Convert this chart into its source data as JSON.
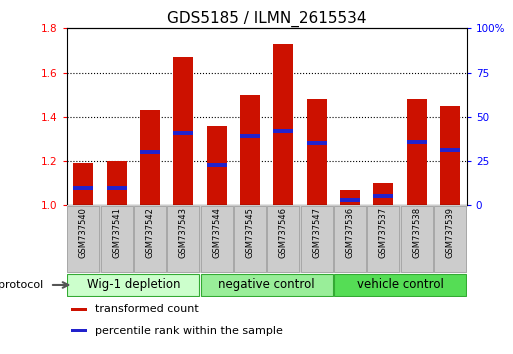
{
  "title": "GDS5185 / ILMN_2615534",
  "samples": [
    "GSM737540",
    "GSM737541",
    "GSM737542",
    "GSM737543",
    "GSM737544",
    "GSM737545",
    "GSM737546",
    "GSM737547",
    "GSM737536",
    "GSM737537",
    "GSM737538",
    "GSM737539"
  ],
  "transformed_count": [
    1.19,
    1.2,
    1.43,
    1.67,
    1.36,
    1.5,
    1.73,
    1.48,
    1.07,
    1.1,
    1.48,
    1.45
  ],
  "percentile_rank_pct": [
    10,
    10,
    30,
    41,
    23,
    39,
    42,
    35,
    3,
    5,
    36,
    31
  ],
  "groups": [
    {
      "label": "Wig-1 depletion",
      "start": 0,
      "end": 3,
      "color": "#ccffcc"
    },
    {
      "label": "negative control",
      "start": 4,
      "end": 7,
      "color": "#99ee99"
    },
    {
      "label": "vehicle control",
      "start": 8,
      "end": 11,
      "color": "#55dd55"
    }
  ],
  "ylim_left": [
    1.0,
    1.8
  ],
  "ylim_right": [
    0,
    100
  ],
  "yticks_left": [
    1.0,
    1.2,
    1.4,
    1.6,
    1.8
  ],
  "yticks_right": [
    0,
    25,
    50,
    75,
    100
  ],
  "bar_color": "#cc1100",
  "percentile_color": "#2222cc",
  "bar_width": 0.6,
  "bg_color": "#ffffff",
  "protocol_label": "protocol",
  "legend_items": [
    {
      "label": "transformed count",
      "color": "#cc1100"
    },
    {
      "label": "percentile rank within the sample",
      "color": "#2222cc"
    }
  ],
  "tick_label_fontsize": 7.5,
  "group_label_fontsize": 8.5,
  "title_fontsize": 11,
  "sample_fontsize": 6,
  "legend_fontsize": 8
}
